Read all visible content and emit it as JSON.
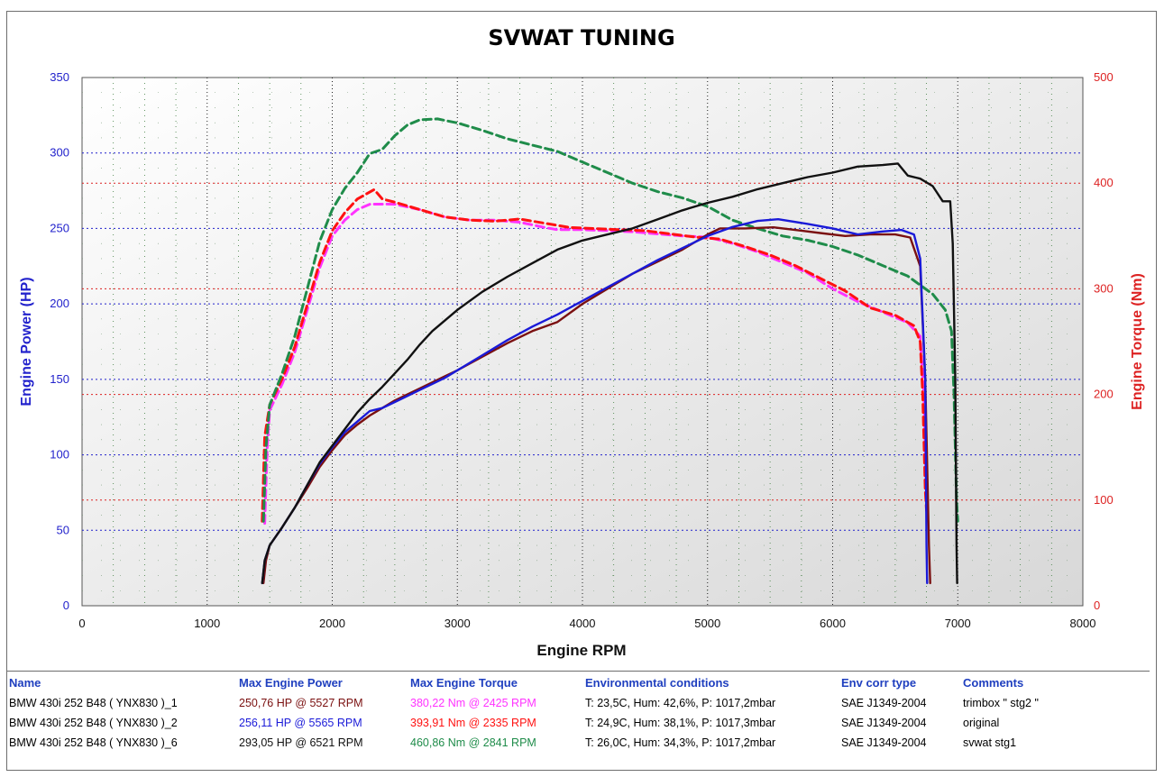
{
  "chart_data": {
    "type": "line",
    "title": "SVWAT TUNING",
    "xlabel": "Engine RPM",
    "ylabel_left": "Engine Power (HP)",
    "ylabel_right": "Engine Torque (Nm)",
    "xlim": [
      0,
      8000
    ],
    "ylim_left": [
      0,
      350
    ],
    "ylim_right": [
      0,
      500
    ],
    "x_ticks": [
      0,
      1000,
      2000,
      3000,
      4000,
      5000,
      6000,
      7000,
      8000
    ],
    "y_left_ticks": [
      0,
      50,
      100,
      150,
      200,
      250,
      300,
      350
    ],
    "y_right_ticks": [
      0,
      100,
      200,
      300,
      400,
      500
    ],
    "grid": true,
    "legend": "table-below",
    "colors": {
      "axis_left": "#2222cc",
      "axis_right": "#dd2222",
      "title": "#000000",
      "header": "#1f3fbf"
    },
    "series": [
      {
        "name": "BMW 430i 252 B48 ( YNX830 )_1",
        "kind": "power",
        "axis": "left",
        "color": "#7a1010",
        "dash": false,
        "points": [
          [
            1450,
            15
          ],
          [
            1470,
            30
          ],
          [
            1500,
            40
          ],
          [
            1600,
            52
          ],
          [
            1700,
            65
          ],
          [
            1800,
            78
          ],
          [
            1900,
            92
          ],
          [
            2000,
            103
          ],
          [
            2100,
            113
          ],
          [
            2200,
            120
          ],
          [
            2300,
            126
          ],
          [
            2400,
            131
          ],
          [
            2500,
            136
          ],
          [
            2600,
            140
          ],
          [
            2700,
            144
          ],
          [
            2800,
            148
          ],
          [
            2900,
            152
          ],
          [
            3000,
            156
          ],
          [
            3200,
            165
          ],
          [
            3400,
            174
          ],
          [
            3600,
            182
          ],
          [
            3800,
            188
          ],
          [
            4000,
            200
          ],
          [
            4200,
            210
          ],
          [
            4400,
            220
          ],
          [
            4600,
            228
          ],
          [
            4800,
            236
          ],
          [
            5000,
            246
          ],
          [
            5100,
            250
          ],
          [
            5300,
            250
          ],
          [
            5527,
            250.76
          ],
          [
            5700,
            249
          ],
          [
            5900,
            247
          ],
          [
            6100,
            245
          ],
          [
            6300,
            246
          ],
          [
            6500,
            246
          ],
          [
            6620,
            244
          ],
          [
            6700,
            225
          ],
          [
            6740,
            150
          ],
          [
            6770,
            40
          ],
          [
            6780,
            15
          ]
        ]
      },
      {
        "name": "BMW 430i 252 B48 ( YNX830 )_2",
        "kind": "power",
        "axis": "left",
        "color": "#1a1ad8",
        "dash": false,
        "points": [
          [
            1440,
            15
          ],
          [
            1460,
            30
          ],
          [
            1500,
            40
          ],
          [
            1600,
            52
          ],
          [
            1700,
            65
          ],
          [
            1800,
            80
          ],
          [
            1900,
            94
          ],
          [
            2000,
            105
          ],
          [
            2100,
            115
          ],
          [
            2200,
            122
          ],
          [
            2300,
            129
          ],
          [
            2400,
            131
          ],
          [
            2500,
            135
          ],
          [
            2600,
            139
          ],
          [
            2700,
            143
          ],
          [
            2800,
            147
          ],
          [
            2900,
            151
          ],
          [
            3000,
            156
          ],
          [
            3200,
            166
          ],
          [
            3400,
            176
          ],
          [
            3600,
            185
          ],
          [
            3800,
            193
          ],
          [
            4000,
            202
          ],
          [
            4200,
            211
          ],
          [
            4400,
            220
          ],
          [
            4600,
            229
          ],
          [
            4800,
            237
          ],
          [
            5000,
            245
          ],
          [
            5200,
            251
          ],
          [
            5400,
            255
          ],
          [
            5565,
            256.11
          ],
          [
            5800,
            253
          ],
          [
            6000,
            250
          ],
          [
            6200,
            246
          ],
          [
            6400,
            248
          ],
          [
            6550,
            249
          ],
          [
            6650,
            246
          ],
          [
            6700,
            230
          ],
          [
            6740,
            150
          ],
          [
            6750,
            40
          ],
          [
            6755,
            15
          ]
        ]
      },
      {
        "name": "BMW 430i 252 B48 ( YNX830 )_6",
        "kind": "power",
        "axis": "left",
        "color": "#111111",
        "dash": false,
        "points": [
          [
            1440,
            15
          ],
          [
            1460,
            30
          ],
          [
            1500,
            40
          ],
          [
            1600,
            52
          ],
          [
            1700,
            65
          ],
          [
            1800,
            80
          ],
          [
            1900,
            95
          ],
          [
            2000,
            106
          ],
          [
            2100,
            117
          ],
          [
            2200,
            128
          ],
          [
            2300,
            137
          ],
          [
            2400,
            145
          ],
          [
            2500,
            154
          ],
          [
            2600,
            163
          ],
          [
            2700,
            173
          ],
          [
            2800,
            182
          ],
          [
            2900,
            189
          ],
          [
            3000,
            196
          ],
          [
            3200,
            208
          ],
          [
            3400,
            218
          ],
          [
            3600,
            227
          ],
          [
            3800,
            236
          ],
          [
            4000,
            242
          ],
          [
            4200,
            246
          ],
          [
            4400,
            250
          ],
          [
            4600,
            256
          ],
          [
            4800,
            262
          ],
          [
            5000,
            267
          ],
          [
            5200,
            271
          ],
          [
            5400,
            276
          ],
          [
            5600,
            280
          ],
          [
            5800,
            284
          ],
          [
            6000,
            287
          ],
          [
            6200,
            291
          ],
          [
            6400,
            292
          ],
          [
            6521,
            293.05
          ],
          [
            6600,
            285
          ],
          [
            6700,
            283
          ],
          [
            6800,
            278
          ],
          [
            6880,
            268
          ],
          [
            6940,
            268
          ],
          [
            6960,
            240
          ],
          [
            6980,
            150
          ],
          [
            6990,
            40
          ],
          [
            6995,
            15
          ]
        ]
      },
      {
        "name": "BMW 430i 252 B48 ( YNX830 )_1",
        "kind": "torque",
        "axis": "right",
        "color": "#ff33ff",
        "dash": true,
        "points": [
          [
            1460,
            78
          ],
          [
            1480,
            150
          ],
          [
            1500,
            185
          ],
          [
            1600,
            210
          ],
          [
            1700,
            240
          ],
          [
            1800,
            280
          ],
          [
            1900,
            320
          ],
          [
            2000,
            350
          ],
          [
            2100,
            365
          ],
          [
            2200,
            375
          ],
          [
            2300,
            380
          ],
          [
            2425,
            380.22
          ],
          [
            2500,
            380
          ],
          [
            2700,
            375
          ],
          [
            2900,
            368
          ],
          [
            3100,
            365
          ],
          [
            3300,
            365
          ],
          [
            3500,
            363
          ],
          [
            3700,
            358
          ],
          [
            3800,
            356
          ],
          [
            4000,
            356
          ],
          [
            4200,
            355
          ],
          [
            4400,
            354
          ],
          [
            4600,
            352
          ],
          [
            4800,
            350
          ],
          [
            5000,
            349
          ],
          [
            5200,
            343
          ],
          [
            5400,
            335
          ],
          [
            5600,
            325
          ],
          [
            5800,
            315
          ],
          [
            6000,
            300
          ],
          [
            6200,
            288
          ],
          [
            6400,
            278
          ],
          [
            6600,
            268
          ],
          [
            6700,
            255
          ],
          [
            6730,
            200
          ],
          [
            6750,
            100
          ]
        ]
      },
      {
        "name": "BMW 430i 252 B48 ( YNX830 )_2",
        "kind": "torque",
        "axis": "right",
        "color": "#ff1111",
        "dash": true,
        "points": [
          [
            1440,
            80
          ],
          [
            1460,
            160
          ],
          [
            1500,
            190
          ],
          [
            1600,
            215
          ],
          [
            1700,
            245
          ],
          [
            1800,
            285
          ],
          [
            1900,
            325
          ],
          [
            2000,
            355
          ],
          [
            2100,
            372
          ],
          [
            2200,
            385
          ],
          [
            2335,
            393.91
          ],
          [
            2400,
            385
          ],
          [
            2500,
            382
          ],
          [
            2700,
            375
          ],
          [
            2900,
            368
          ],
          [
            3100,
            365
          ],
          [
            3300,
            364
          ],
          [
            3500,
            366
          ],
          [
            3700,
            362
          ],
          [
            3900,
            358
          ],
          [
            4100,
            357
          ],
          [
            4300,
            356
          ],
          [
            4500,
            355
          ],
          [
            4700,
            352
          ],
          [
            4900,
            349
          ],
          [
            5100,
            347
          ],
          [
            5300,
            340
          ],
          [
            5500,
            332
          ],
          [
            5700,
            322
          ],
          [
            5900,
            310
          ],
          [
            6100,
            298
          ],
          [
            6300,
            282
          ],
          [
            6500,
            275
          ],
          [
            6650,
            265
          ],
          [
            6700,
            250
          ],
          [
            6720,
            200
          ],
          [
            6740,
            110
          ],
          [
            6750,
            90
          ]
        ]
      },
      {
        "name": "BMW 430i 252 B48 ( YNX830 )_6",
        "kind": "torque",
        "axis": "right",
        "color": "#1f8c4a",
        "dash": true,
        "points": [
          [
            1450,
            80
          ],
          [
            1470,
            150
          ],
          [
            1500,
            190
          ],
          [
            1600,
            220
          ],
          [
            1700,
            255
          ],
          [
            1800,
            300
          ],
          [
            1900,
            345
          ],
          [
            2000,
            375
          ],
          [
            2100,
            395
          ],
          [
            2200,
            410
          ],
          [
            2300,
            428
          ],
          [
            2400,
            432
          ],
          [
            2500,
            445
          ],
          [
            2600,
            455
          ],
          [
            2700,
            460
          ],
          [
            2841,
            460.86
          ],
          [
            3000,
            457
          ],
          [
            3200,
            450
          ],
          [
            3400,
            442
          ],
          [
            3600,
            436
          ],
          [
            3800,
            430
          ],
          [
            4000,
            420
          ],
          [
            4200,
            410
          ],
          [
            4400,
            400
          ],
          [
            4600,
            392
          ],
          [
            4800,
            386
          ],
          [
            5000,
            378
          ],
          [
            5200,
            365
          ],
          [
            5400,
            357
          ],
          [
            5600,
            350
          ],
          [
            5800,
            346
          ],
          [
            6000,
            340
          ],
          [
            6200,
            332
          ],
          [
            6400,
            322
          ],
          [
            6600,
            312
          ],
          [
            6800,
            295
          ],
          [
            6900,
            280
          ],
          [
            6950,
            260
          ],
          [
            6970,
            200
          ],
          [
            6990,
            100
          ],
          [
            7000,
            80
          ]
        ]
      }
    ]
  },
  "table": {
    "headers": [
      "Name",
      "Max Engine Power",
      "Max Engine Torque",
      "Environmental conditions",
      "Env corr type",
      "Comments"
    ],
    "rows": [
      {
        "name": "BMW 430i 252 B48 ( YNX830 )_1",
        "power": "250,76 HP @ 5527 RPM",
        "torque": "380,22 Nm @ 2425 RPM",
        "env": "T: 23,5C, Hum: 42,6%, P: 1017,2mbar",
        "corr": "SAE J1349-2004",
        "comment": "trimbox \" stg2 \"",
        "power_color": "#7a1010",
        "torque_color": "#ff33ff"
      },
      {
        "name": "BMW 430i 252 B48 ( YNX830 )_2",
        "power": "256,11 HP @ 5565 RPM",
        "torque": "393,91 Nm @ 2335 RPM",
        "env": "T: 24,9C, Hum: 38,1%, P: 1017,3mbar",
        "corr": "SAE J1349-2004",
        "comment": "original",
        "power_color": "#1a1ad8",
        "torque_color": "#ff1111"
      },
      {
        "name": "BMW 430i 252 B48 ( YNX830 )_6",
        "power": "293,05 HP @ 6521 RPM",
        "torque": "460,86 Nm @ 2841 RPM",
        "env": "T: 26,0C, Hum: 34,3%, P: 1017,2mbar",
        "corr": "SAE J1349-2004",
        "comment": "svwat stg1",
        "power_color": "#111111",
        "torque_color": "#1f8c4a"
      }
    ]
  }
}
